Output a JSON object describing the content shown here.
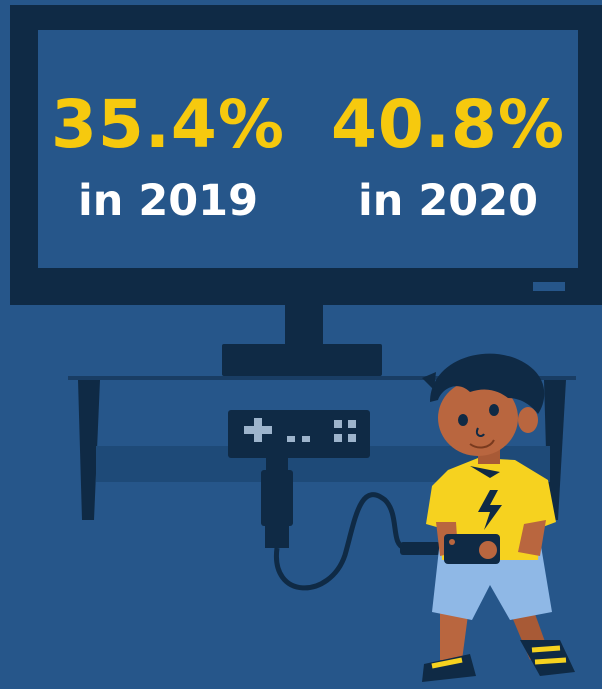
{
  "colors": {
    "background": "#26568a",
    "tv_frame": "#0f2a45",
    "tv_screen": "#26568a",
    "percentage_text": "#f6c90e",
    "year_text": "#ffffff",
    "shirt": "#f6d21f",
    "shorts": "#8fb8e6",
    "skin": "#b9663f"
  },
  "stats": [
    {
      "percentage": "35.4%",
      "year_label": "in 2019"
    },
    {
      "percentage": "40.8%",
      "year_label": "in 2020"
    }
  ],
  "icons": {
    "tv": "tv-icon",
    "console": "game-console-icon",
    "controller": "game-controller-icon",
    "child": "child-gamer-illustration",
    "lightning": "lightning-bolt-icon"
  }
}
